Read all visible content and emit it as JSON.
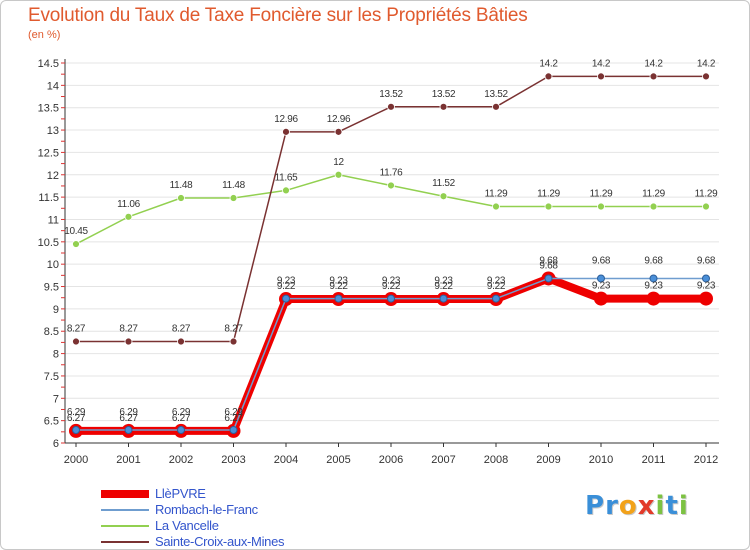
{
  "title": "Evolution du Taux de Taxe Foncière sur les Propriétés Bâties",
  "unit_label": "(en %)",
  "logo": {
    "text": "Proxiti",
    "letters": [
      {
        "ch": "P",
        "color": "#3a8fd8"
      },
      {
        "ch": "r",
        "color": "#3a8fd8"
      },
      {
        "ch": "o",
        "color": "#f2a21a"
      },
      {
        "ch": "x",
        "color": "#e23a2a"
      },
      {
        "ch": "i",
        "color": "#7cc242"
      },
      {
        "ch": "t",
        "color": "#3a8fd8"
      },
      {
        "ch": "i",
        "color": "#7cc242"
      }
    ]
  },
  "chart_data": {
    "type": "line",
    "title": "Evolution du Taux de Taxe Foncière sur les Propriétés Bâties",
    "ylabel": "(en %)",
    "xlabel": "",
    "categories": [
      "2000",
      "2001",
      "2002",
      "2003",
      "2004",
      "2005",
      "2006",
      "2007",
      "2008",
      "2009",
      "2010",
      "2011",
      "2012"
    ],
    "ylim": [
      6,
      14.5
    ],
    "yticks": [
      "6",
      "6.5",
      "7",
      "7.5",
      "8",
      "8.5",
      "9",
      "9.5",
      "10",
      "10.5",
      "11",
      "11.5",
      "12",
      "12.5",
      "13",
      "13.5",
      "14",
      "14.5"
    ],
    "series": [
      {
        "name": "LlèPVRE",
        "color": "#ee0000",
        "values": [
          6.27,
          6.27,
          6.27,
          6.27,
          9.22,
          9.22,
          9.22,
          9.22,
          9.22,
          9.68,
          9.23,
          9.23,
          9.23
        ],
        "labels": [
          "6.27",
          "6.27",
          "6.27",
          "6.27",
          "9.22",
          "9.22",
          "9.22",
          "9.22",
          "9.22",
          "9.68",
          "9.23",
          "9.23",
          "9.23"
        ]
      },
      {
        "name": "Rombach-le-Franc",
        "color": "#6f9dcf",
        "values": [
          6.29,
          6.29,
          6.29,
          6.29,
          9.23,
          9.23,
          9.23,
          9.23,
          9.23,
          9.68,
          9.68,
          9.68,
          9.68
        ],
        "labels": [
          "6.29",
          "6.29",
          "6.29",
          "6.29",
          "9.23",
          "9.23",
          "9.23",
          "9.23",
          "9.23",
          "9.68",
          "9.68",
          "9.68",
          "9.68"
        ]
      },
      {
        "name": "La Vancelle",
        "color": "#92d050",
        "values": [
          10.45,
          11.06,
          11.48,
          11.48,
          11.65,
          12,
          11.76,
          11.52,
          11.29,
          11.29,
          11.29,
          11.29,
          11.29
        ],
        "labels": [
          "10.45",
          "11.06",
          "11.48",
          "11.48",
          "11.65",
          "12",
          "11.76",
          "11.52",
          "11.29",
          "11.29",
          "11.29",
          "11.29",
          "11.29"
        ]
      },
      {
        "name": "Sainte-Croix-aux-Mines",
        "color": "#7a3232",
        "values": [
          8.27,
          8.27,
          8.27,
          8.27,
          12.96,
          12.96,
          13.52,
          13.52,
          13.52,
          14.2,
          14.2,
          14.2,
          14.2
        ],
        "labels": [
          "8.27",
          "8.27",
          "8.27",
          "8.27",
          "12.96",
          "12.96",
          "13.52",
          "13.52",
          "13.52",
          "14.2",
          "14.2",
          "14.2",
          "14.2"
        ]
      }
    ]
  }
}
